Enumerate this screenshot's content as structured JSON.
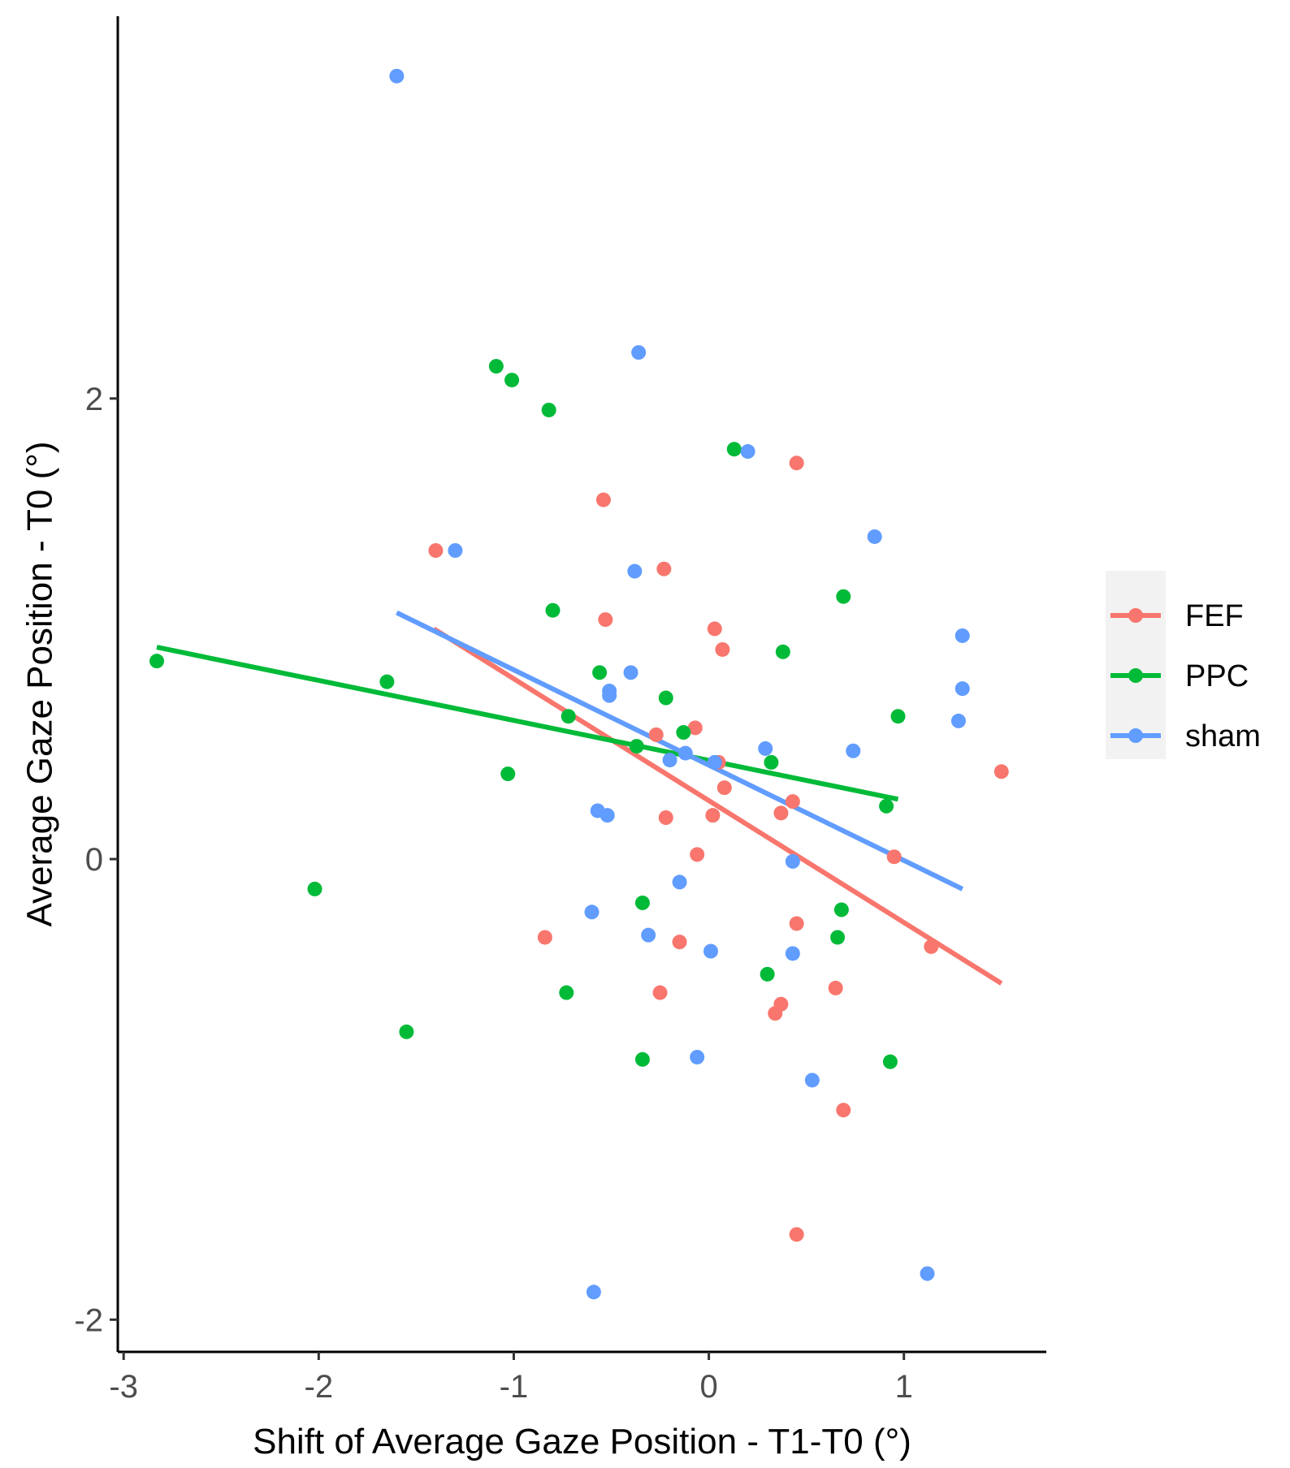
{
  "chart_data": {
    "type": "scatter",
    "title": "",
    "xlabel": "Shift of Average Gaze Position - T1-T0 (°)",
    "ylabel": "Average Gaze Position - T0 (°)",
    "xlim": [
      -3.03,
      1.73
    ],
    "ylim": [
      -2.14,
      3.66
    ],
    "x_ticks": [
      -3,
      -2,
      -1,
      0,
      1
    ],
    "x_tick_labels": [
      "-3",
      "-2",
      "-1",
      "0",
      "1"
    ],
    "y_ticks": [
      -2,
      0,
      2
    ],
    "y_tick_labels": [
      "-2",
      "0",
      "2"
    ],
    "grid": false,
    "legend_position": "right",
    "series": [
      {
        "name": "FEF",
        "color": "#F8766D",
        "points": [
          [
            -1.4,
            1.34
          ],
          [
            -0.54,
            1.56
          ],
          [
            -0.53,
            1.04
          ],
          [
            -0.23,
            1.26
          ],
          [
            0.03,
            1.0
          ],
          [
            0.07,
            0.91
          ],
          [
            -0.27,
            0.54
          ],
          [
            -0.07,
            0.57
          ],
          [
            0.05,
            0.42
          ],
          [
            0.08,
            0.31
          ],
          [
            -0.22,
            0.18
          ],
          [
            0.02,
            0.19
          ],
          [
            0.37,
            0.2
          ],
          [
            0.43,
            0.25
          ],
          [
            -0.06,
            0.02
          ],
          [
            0.95,
            0.01
          ],
          [
            1.14,
            -0.38
          ],
          [
            1.5,
            0.38
          ],
          [
            -0.84,
            -0.34
          ],
          [
            -0.15,
            -0.36
          ],
          [
            0.45,
            -0.28
          ],
          [
            -0.25,
            -0.58
          ],
          [
            0.65,
            -0.56
          ],
          [
            0.37,
            -0.63
          ],
          [
            0.34,
            -0.67
          ],
          [
            0.69,
            -1.09
          ],
          [
            0.45,
            -1.63
          ],
          [
            0.45,
            1.72
          ]
        ],
        "fit": [
          [
            -1.41,
            1.0
          ],
          [
            1.5,
            -0.54
          ]
        ]
      },
      {
        "name": "PPC",
        "color": "#00BA38",
        "points": [
          [
            -2.83,
            0.86
          ],
          [
            -1.65,
            0.77
          ],
          [
            -1.09,
            2.14
          ],
          [
            -1.01,
            2.08
          ],
          [
            -0.82,
            1.95
          ],
          [
            -0.8,
            1.08
          ],
          [
            -1.03,
            0.37
          ],
          [
            -0.72,
            0.62
          ],
          [
            -0.56,
            0.81
          ],
          [
            -0.22,
            0.7
          ],
          [
            -0.13,
            0.55
          ],
          [
            -0.37,
            0.49
          ],
          [
            0.13,
            1.78
          ],
          [
            0.38,
            0.9
          ],
          [
            0.69,
            1.14
          ],
          [
            0.32,
            0.42
          ],
          [
            0.97,
            0.62
          ],
          [
            0.91,
            0.23
          ],
          [
            -0.34,
            -0.19
          ],
          [
            0.68,
            -0.22
          ],
          [
            0.66,
            -0.34
          ],
          [
            0.3,
            -0.5
          ],
          [
            -0.73,
            -0.58
          ],
          [
            -1.55,
            -0.75
          ],
          [
            -0.34,
            -0.87
          ],
          [
            0.93,
            -0.88
          ],
          [
            -2.02,
            -0.13
          ]
        ],
        "fit": [
          [
            -2.83,
            0.92
          ],
          [
            0.97,
            0.26
          ]
        ]
      },
      {
        "name": "sham",
        "color": "#619CFF",
        "points": [
          [
            -1.6,
            3.4
          ],
          [
            -0.36,
            2.2
          ],
          [
            -1.3,
            1.34
          ],
          [
            0.2,
            1.77
          ],
          [
            -0.38,
            1.25
          ],
          [
            0.85,
            1.4
          ],
          [
            -0.51,
            0.73
          ],
          [
            -0.51,
            0.71
          ],
          [
            -0.4,
            0.81
          ],
          [
            -0.2,
            0.43
          ],
          [
            -0.12,
            0.46
          ],
          [
            0.03,
            0.42
          ],
          [
            0.29,
            0.48
          ],
          [
            0.74,
            0.47
          ],
          [
            1.28,
            0.6
          ],
          [
            1.3,
            0.97
          ],
          [
            1.3,
            0.74
          ],
          [
            -0.57,
            0.21
          ],
          [
            -0.52,
            0.19
          ],
          [
            -0.6,
            -0.23
          ],
          [
            -0.31,
            -0.33
          ],
          [
            -0.15,
            -0.1
          ],
          [
            0.43,
            -0.01
          ],
          [
            0.01,
            -0.4
          ],
          [
            0.43,
            -0.41
          ],
          [
            -0.06,
            -0.86
          ],
          [
            0.53,
            -0.96
          ],
          [
            1.12,
            -1.8
          ],
          [
            -0.59,
            -1.88
          ]
        ],
        "fit": [
          [
            -1.6,
            1.07
          ],
          [
            1.3,
            -0.13
          ]
        ]
      }
    ]
  }
}
